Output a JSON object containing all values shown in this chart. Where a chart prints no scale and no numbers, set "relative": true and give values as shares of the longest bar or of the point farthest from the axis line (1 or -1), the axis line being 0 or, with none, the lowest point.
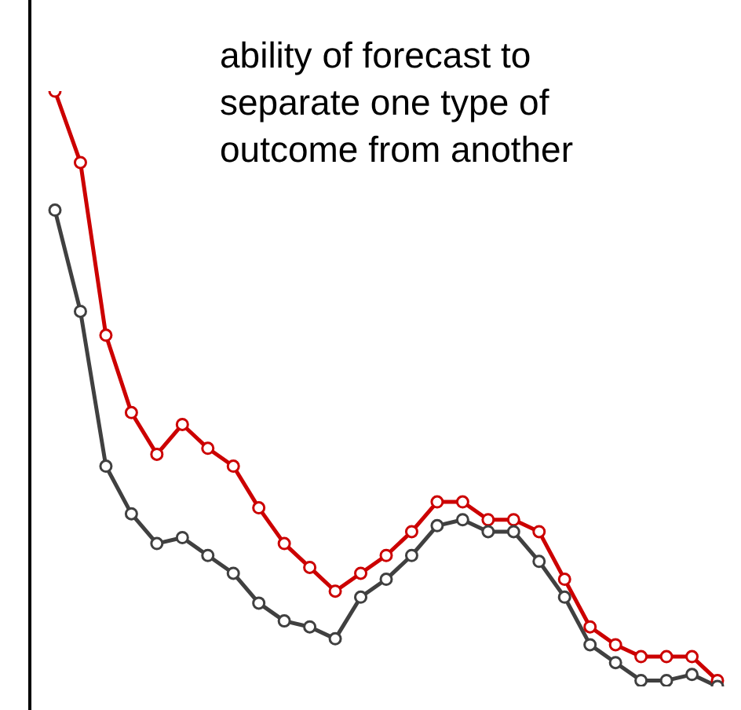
{
  "chart_data": {
    "type": "line",
    "relative": true,
    "marker": "circle",
    "line_style": "solid",
    "annotations": [
      "ability of forecast to\nseparate one type of\noutcome from another"
    ],
    "categories": [
      null,
      null,
      null,
      null,
      null,
      null,
      null,
      null,
      null,
      null,
      null,
      null,
      null,
      null,
      null,
      null,
      null,
      null,
      null,
      null,
      null,
      null,
      null,
      null,
      null,
      null,
      null
    ],
    "series": [
      {
        "color": "#cc0000",
        "values": [
          1.0,
          0.88,
          0.59,
          0.46,
          0.39,
          0.44,
          0.4,
          0.37,
          0.3,
          0.24,
          0.2,
          0.16,
          0.19,
          0.22,
          0.26,
          0.31,
          0.31,
          0.28,
          0.28,
          0.26,
          0.18,
          0.1,
          0.07,
          0.05,
          0.05,
          0.05,
          0.01
        ]
      },
      {
        "color": "#404040",
        "values": [
          0.8,
          0.63,
          0.37,
          0.29,
          0.24,
          0.25,
          0.22,
          0.19,
          0.14,
          0.11,
          0.1,
          0.08,
          0.15,
          0.18,
          0.22,
          0.27,
          0.28,
          0.26,
          0.26,
          0.21,
          0.15,
          0.07,
          0.04,
          0.01,
          0.01,
          0.02,
          0.0
        ]
      }
    ]
  }
}
